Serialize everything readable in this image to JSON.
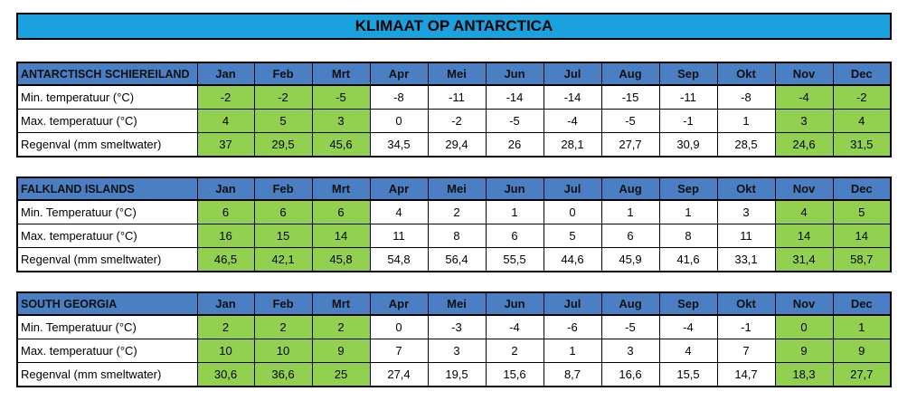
{
  "title": "KLIMAAT OP ANTARCTICA",
  "months": [
    "Jan",
    "Feb",
    "Mrt",
    "Apr",
    "Mei",
    "Jun",
    "Jul",
    "Aug",
    "Sep",
    "Okt",
    "Nov",
    "Dec"
  ],
  "colors": {
    "title_bg": "#1ba1de",
    "header_bg": "#4a7fc4",
    "highlight": "#92d050"
  },
  "highlight_month_indexes": [
    0,
    1,
    2,
    10,
    11
  ],
  "sections": [
    {
      "name": "ANTARCTISCH SCHIEREILAND",
      "rows": [
        {
          "label": "Min. temperatuur (°C)",
          "values": [
            "-2",
            "-2",
            "-5",
            "-8",
            "-11",
            "-14",
            "-14",
            "-15",
            "-11",
            "-8",
            "-4",
            "-2"
          ]
        },
        {
          "label": "Max. temperatuur (°C)",
          "values": [
            "4",
            "5",
            "3",
            "0",
            "-2",
            "-5",
            "-4",
            "-5",
            "-1",
            "1",
            "3",
            "4"
          ]
        },
        {
          "label": "Regenval (mm smeltwater)",
          "values": [
            "37",
            "29,5",
            "45,6",
            "34,5",
            "29,4",
            "26",
            "28,1",
            "27,7",
            "30,9",
            "28,5",
            "24,6",
            "31,5"
          ]
        }
      ]
    },
    {
      "name": "FALKLAND ISLANDS",
      "rows": [
        {
          "label": "Min. Temperatuur (°C)",
          "values": [
            "6",
            "6",
            "6",
            "4",
            "2",
            "1",
            "0",
            "1",
            "1",
            "3",
            "4",
            "5"
          ]
        },
        {
          "label": "Max. temperatuur (°C)",
          "values": [
            "16",
            "15",
            "14",
            "11",
            "8",
            "6",
            "5",
            "6",
            "8",
            "11",
            "14",
            "14"
          ]
        },
        {
          "label": "Regenval (mm smeltwater)",
          "values": [
            "46,5",
            "42,1",
            "45,8",
            "54,8",
            "56,4",
            "55,5",
            "44,6",
            "45,9",
            "41,6",
            "33,1",
            "31,4",
            "58,7"
          ]
        }
      ]
    },
    {
      "name": "SOUTH GEORGIA",
      "rows": [
        {
          "label": "Min. Temperatuur (°C)",
          "values": [
            "2",
            "2",
            "2",
            "0",
            "-3",
            "-4",
            "-6",
            "-5",
            "-4",
            "-1",
            "0",
            "1"
          ]
        },
        {
          "label": "Max. temperatuur (°C)",
          "values": [
            "10",
            "10",
            "9",
            "7",
            "3",
            "2",
            "1",
            "3",
            "4",
            "7",
            "9",
            "9"
          ]
        },
        {
          "label": "Regenval (mm smeltwater)",
          "values": [
            "30,6",
            "36,6",
            "25",
            "27,4",
            "19,5",
            "15,6",
            "8,7",
            "16,6",
            "15,5",
            "14,7",
            "18,3",
            "27,7"
          ]
        }
      ]
    }
  ]
}
